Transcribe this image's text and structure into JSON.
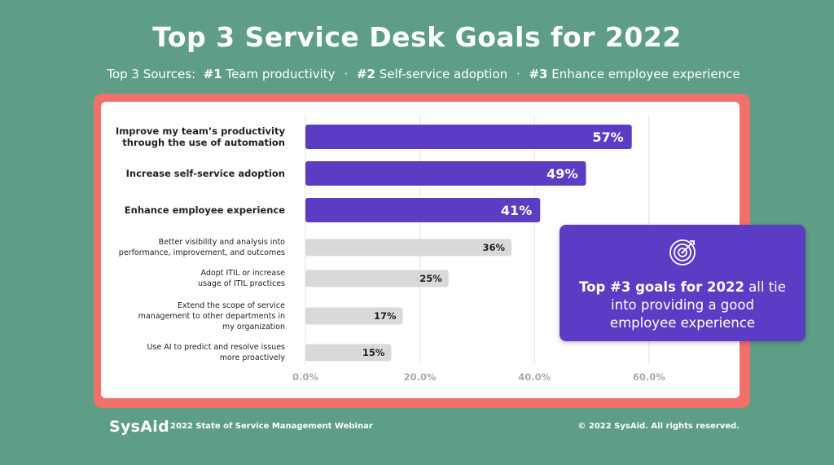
{
  "title": "Top 3 Service Desk Goals for 2022",
  "subtitle": {
    "prefix": "Top 3 Sources:",
    "items": [
      {
        "rank": "#1",
        "text": "Team productivity"
      },
      {
        "rank": "#2",
        "text": "Self-service adoption"
      },
      {
        "rank": "#3",
        "text": "Enhance employee experience"
      }
    ]
  },
  "chart_data": {
    "type": "bar",
    "orientation": "horizontal",
    "categories": [
      [
        "Improve my team’s productivity",
        "through the use of automation"
      ],
      [
        "Increase self-service adoption"
      ],
      [
        "Enhance employee experience"
      ],
      [
        "Better visibility and analysis into",
        "performance, improvement, and outcomes"
      ],
      [
        "Adopt ITIL or increase",
        "usage of ITIL practices"
      ],
      [
        "Extend the scope of service",
        "management to other departments in",
        "my organization"
      ],
      [
        "Use AI to predict and resolve issues",
        "more proactively"
      ]
    ],
    "values": [
      57,
      49,
      41,
      36,
      25,
      17,
      15
    ],
    "value_labels": [
      "57%",
      "49%",
      "41%",
      "36%",
      "25%",
      "17%",
      "15%"
    ],
    "highlight_top": 3,
    "xlim": [
      0,
      70
    ],
    "xticks": [
      0,
      20,
      40,
      60
    ],
    "xtick_labels": [
      "0.0%",
      "20.0%",
      "40.0%",
      "60.0%"
    ],
    "grid": true,
    "colors": {
      "highlight": "#5b3cc4",
      "other": "#d9d9d9",
      "grid": "#e2e2e2",
      "tick": "#aaaaaa"
    }
  },
  "callout": {
    "bold": "Top #3 goals for 2022",
    "text": " all tie into providing a good employee experience",
    "icon": "target-icon"
  },
  "footer": {
    "logo": "SysAid",
    "event": "2022 State of Service Management Webinar",
    "copyright": "© 2022 SysAid. All rights reserved."
  },
  "colors": {
    "background": "#5e9e87",
    "frame": "#f1716a",
    "card": "#ffffff",
    "accent": "#5b3cc4"
  }
}
